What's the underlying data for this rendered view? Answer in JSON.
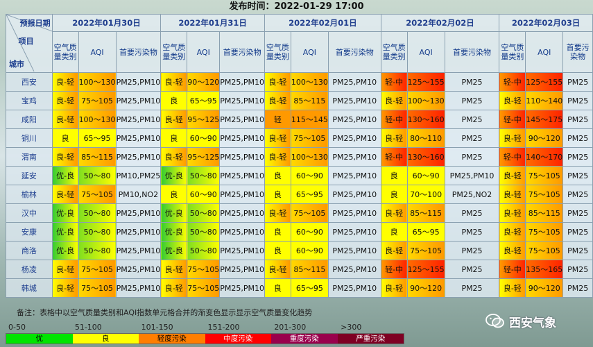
{
  "header": {
    "publish_label": "发布时间：",
    "publish_time": "2022-01-29 17:00"
  },
  "corner": {
    "date_label": "预报日期",
    "item_label": "项目",
    "city_label": "城市"
  },
  "dates": [
    "2022年01月30日",
    "2022年01月31日",
    "2022年02月01日",
    "2022年02月02日",
    "2022年02月03日"
  ],
  "subheaders": {
    "category": "空气质量类别",
    "aqi": "AQI",
    "pollutant": "首要污染物"
  },
  "colors": {
    "优": "#33cc33",
    "良": "#ffff00",
    "轻": "#ff9900",
    "中": "#ff2200"
  },
  "rows": [
    {
      "city": "西安",
      "days": [
        {
          "cat": "良-轻",
          "aqi": "100～130",
          "pol": "PM25,PM10",
          "c1": "良",
          "c2": "轻"
        },
        {
          "cat": "良-轻",
          "aqi": "90～120",
          "pol": "PM25,PM10",
          "c1": "良",
          "c2": "轻"
        },
        {
          "cat": "良-轻",
          "aqi": "100～130",
          "pol": "PM25,PM10",
          "c1": "良",
          "c2": "轻"
        },
        {
          "cat": "轻-中",
          "aqi": "125～155",
          "pol": "PM25",
          "c1": "轻",
          "c2": "中"
        },
        {
          "cat": "轻-中",
          "aqi": "125～155",
          "pol": "PM25",
          "c1": "轻",
          "c2": "中"
        }
      ]
    },
    {
      "city": "宝鸡",
      "days": [
        {
          "cat": "良-轻",
          "aqi": "75～105",
          "pol": "PM25,PM10",
          "c1": "良",
          "c2": "轻"
        },
        {
          "cat": "良",
          "aqi": "65～95",
          "pol": "PM25,PM10",
          "c1": "良",
          "c2": "良"
        },
        {
          "cat": "良-轻",
          "aqi": "85～115",
          "pol": "PM25,PM10",
          "c1": "良",
          "c2": "轻"
        },
        {
          "cat": "良-轻",
          "aqi": "100～130",
          "pol": "PM25",
          "c1": "良",
          "c2": "轻"
        },
        {
          "cat": "良-轻",
          "aqi": "110～140",
          "pol": "PM25",
          "c1": "良",
          "c2": "轻"
        }
      ]
    },
    {
      "city": "咸阳",
      "days": [
        {
          "cat": "良-轻",
          "aqi": "100～130",
          "pol": "PM25,PM10",
          "c1": "良",
          "c2": "轻"
        },
        {
          "cat": "良-轻",
          "aqi": "95～125",
          "pol": "PM25,PM10",
          "c1": "良",
          "c2": "轻"
        },
        {
          "cat": "轻",
          "aqi": "115～145",
          "pol": "PM25,PM10",
          "c1": "轻",
          "c2": "轻"
        },
        {
          "cat": "轻-中",
          "aqi": "130～160",
          "pol": "PM25",
          "c1": "轻",
          "c2": "中"
        },
        {
          "cat": "轻-中",
          "aqi": "145～175",
          "pol": "PM25",
          "c1": "轻",
          "c2": "中"
        }
      ]
    },
    {
      "city": "铜川",
      "days": [
        {
          "cat": "良",
          "aqi": "65～95",
          "pol": "PM25,PM10",
          "c1": "良",
          "c2": "良"
        },
        {
          "cat": "良",
          "aqi": "60～90",
          "pol": "PM25,PM10",
          "c1": "良",
          "c2": "良"
        },
        {
          "cat": "良-轻",
          "aqi": "75～105",
          "pol": "PM25,PM10",
          "c1": "良",
          "c2": "轻"
        },
        {
          "cat": "良-轻",
          "aqi": "80～110",
          "pol": "PM25",
          "c1": "良",
          "c2": "轻"
        },
        {
          "cat": "良-轻",
          "aqi": "90～120",
          "pol": "PM25",
          "c1": "良",
          "c2": "轻"
        }
      ]
    },
    {
      "city": "渭南",
      "days": [
        {
          "cat": "良-轻",
          "aqi": "85～115",
          "pol": "PM25,PM10",
          "c1": "良",
          "c2": "轻"
        },
        {
          "cat": "良-轻",
          "aqi": "95～125",
          "pol": "PM25,PM10",
          "c1": "良",
          "c2": "轻"
        },
        {
          "cat": "良-轻",
          "aqi": "100～130",
          "pol": "PM25,PM10",
          "c1": "良",
          "c2": "轻"
        },
        {
          "cat": "轻-中",
          "aqi": "130～160",
          "pol": "PM25",
          "c1": "轻",
          "c2": "中"
        },
        {
          "cat": "轻-中",
          "aqi": "140～170",
          "pol": "PM25",
          "c1": "轻",
          "c2": "中"
        }
      ]
    },
    {
      "city": "延安",
      "days": [
        {
          "cat": "优-良",
          "aqi": "50～80",
          "pol": "PM10,PM25",
          "c1": "优",
          "c2": "良"
        },
        {
          "cat": "优-良",
          "aqi": "50～80",
          "pol": "PM25,PM10",
          "c1": "优",
          "c2": "良"
        },
        {
          "cat": "良",
          "aqi": "60～90",
          "pol": "PM25,PM10",
          "c1": "良",
          "c2": "良"
        },
        {
          "cat": "良",
          "aqi": "60～90",
          "pol": "PM25,PM10",
          "c1": "良",
          "c2": "良"
        },
        {
          "cat": "良-轻",
          "aqi": "75～105",
          "pol": "PM25",
          "c1": "良",
          "c2": "轻"
        }
      ]
    },
    {
      "city": "榆林",
      "days": [
        {
          "cat": "良-轻",
          "aqi": "75～105",
          "pol": "PM10,NO2",
          "c1": "良",
          "c2": "轻"
        },
        {
          "cat": "良",
          "aqi": "60～90",
          "pol": "PM25,PM10",
          "c1": "良",
          "c2": "良"
        },
        {
          "cat": "良",
          "aqi": "65～95",
          "pol": "PM25,PM10",
          "c1": "良",
          "c2": "良"
        },
        {
          "cat": "良",
          "aqi": "70～100",
          "pol": "PM25,NO2",
          "c1": "良",
          "c2": "良"
        },
        {
          "cat": "良-轻",
          "aqi": "75～105",
          "pol": "PM25",
          "c1": "良",
          "c2": "轻"
        }
      ]
    },
    {
      "city": "汉中",
      "days": [
        {
          "cat": "优-良",
          "aqi": "50～80",
          "pol": "PM25,PM10",
          "c1": "优",
          "c2": "良"
        },
        {
          "cat": "优-良",
          "aqi": "50～80",
          "pol": "PM25,PM10",
          "c1": "优",
          "c2": "良"
        },
        {
          "cat": "良-轻",
          "aqi": "75～105",
          "pol": "PM25,PM10",
          "c1": "良",
          "c2": "轻"
        },
        {
          "cat": "良-轻",
          "aqi": "85～115",
          "pol": "PM25",
          "c1": "良",
          "c2": "轻"
        },
        {
          "cat": "良-轻",
          "aqi": "85～115",
          "pol": "PM25",
          "c1": "良",
          "c2": "轻"
        }
      ]
    },
    {
      "city": "安康",
      "days": [
        {
          "cat": "优-良",
          "aqi": "50～80",
          "pol": "PM25,PM10",
          "c1": "优",
          "c2": "良"
        },
        {
          "cat": "优-良",
          "aqi": "50～80",
          "pol": "PM25,PM10",
          "c1": "优",
          "c2": "良"
        },
        {
          "cat": "良",
          "aqi": "60～90",
          "pol": "PM25,PM10",
          "c1": "良",
          "c2": "良"
        },
        {
          "cat": "良",
          "aqi": "65～95",
          "pol": "PM25",
          "c1": "良",
          "c2": "良"
        },
        {
          "cat": "良-轻",
          "aqi": "75～105",
          "pol": "PM25",
          "c1": "良",
          "c2": "轻"
        }
      ]
    },
    {
      "city": "商洛",
      "days": [
        {
          "cat": "优-良",
          "aqi": "50～80",
          "pol": "PM25,PM10",
          "c1": "优",
          "c2": "良"
        },
        {
          "cat": "优-良",
          "aqi": "50～80",
          "pol": "PM25,PM10",
          "c1": "优",
          "c2": "良"
        },
        {
          "cat": "良",
          "aqi": "60～90",
          "pol": "PM25,PM10",
          "c1": "良",
          "c2": "良"
        },
        {
          "cat": "良-轻",
          "aqi": "75～105",
          "pol": "PM25",
          "c1": "良",
          "c2": "轻"
        },
        {
          "cat": "良-轻",
          "aqi": "75～105",
          "pol": "PM25",
          "c1": "良",
          "c2": "轻"
        }
      ]
    },
    {
      "city": "杨凌",
      "days": [
        {
          "cat": "良-轻",
          "aqi": "75～105",
          "pol": "PM25,PM10",
          "c1": "良",
          "c2": "轻"
        },
        {
          "cat": "良-轻",
          "aqi": "75～105",
          "pol": "PM25,PM10",
          "c1": "良",
          "c2": "轻"
        },
        {
          "cat": "良-轻",
          "aqi": "85～115",
          "pol": "PM25,PM10",
          "c1": "良",
          "c2": "轻"
        },
        {
          "cat": "轻-中",
          "aqi": "125～155",
          "pol": "PM25",
          "c1": "轻",
          "c2": "中"
        },
        {
          "cat": "轻-中",
          "aqi": "135～165",
          "pol": "PM25",
          "c1": "轻",
          "c2": "中"
        }
      ]
    },
    {
      "city": "韩城",
      "days": [
        {
          "cat": "良-轻",
          "aqi": "75～105",
          "pol": "PM25,PM10",
          "c1": "良",
          "c2": "轻"
        },
        {
          "cat": "良-轻",
          "aqi": "75～105",
          "pol": "PM25,PM10",
          "c1": "良",
          "c2": "轻"
        },
        {
          "cat": "良",
          "aqi": "65～95",
          "pol": "PM25,PM10",
          "c1": "良",
          "c2": "良"
        },
        {
          "cat": "良-轻",
          "aqi": "90～120",
          "pol": "PM25",
          "c1": "良",
          "c2": "轻"
        },
        {
          "cat": "良-轻",
          "aqi": "90～120",
          "pol": "PM25",
          "c1": "良",
          "c2": "轻"
        }
      ]
    }
  ],
  "note": "备注：表格中以空气质量类别和AQI指数单元格合并的渐变色显示显示空气质量变化趋势",
  "legend": [
    {
      "range": "0-50",
      "label": "优",
      "color": "#00e400",
      "text_color": "#000000"
    },
    {
      "range": "51-100",
      "label": "良",
      "color": "#ffff00",
      "text_color": "#000000"
    },
    {
      "range": "101-150",
      "label": "轻度污染",
      "color": "#ff7e00",
      "text_color": "#000000"
    },
    {
      "range": "151-200",
      "label": "中度污染",
      "color": "#ff0000",
      "text_color": "#ffffff"
    },
    {
      "range": "201-300",
      "label": "重度污染",
      "color": "#99004c",
      "text_color": "#ffffff"
    },
    {
      "range": ">300",
      "label": "严重污染",
      "color": "#7e0023",
      "text_color": "#ffffff"
    }
  ],
  "brand": {
    "name": "西安气象",
    "icon": "wechat-icon"
  }
}
